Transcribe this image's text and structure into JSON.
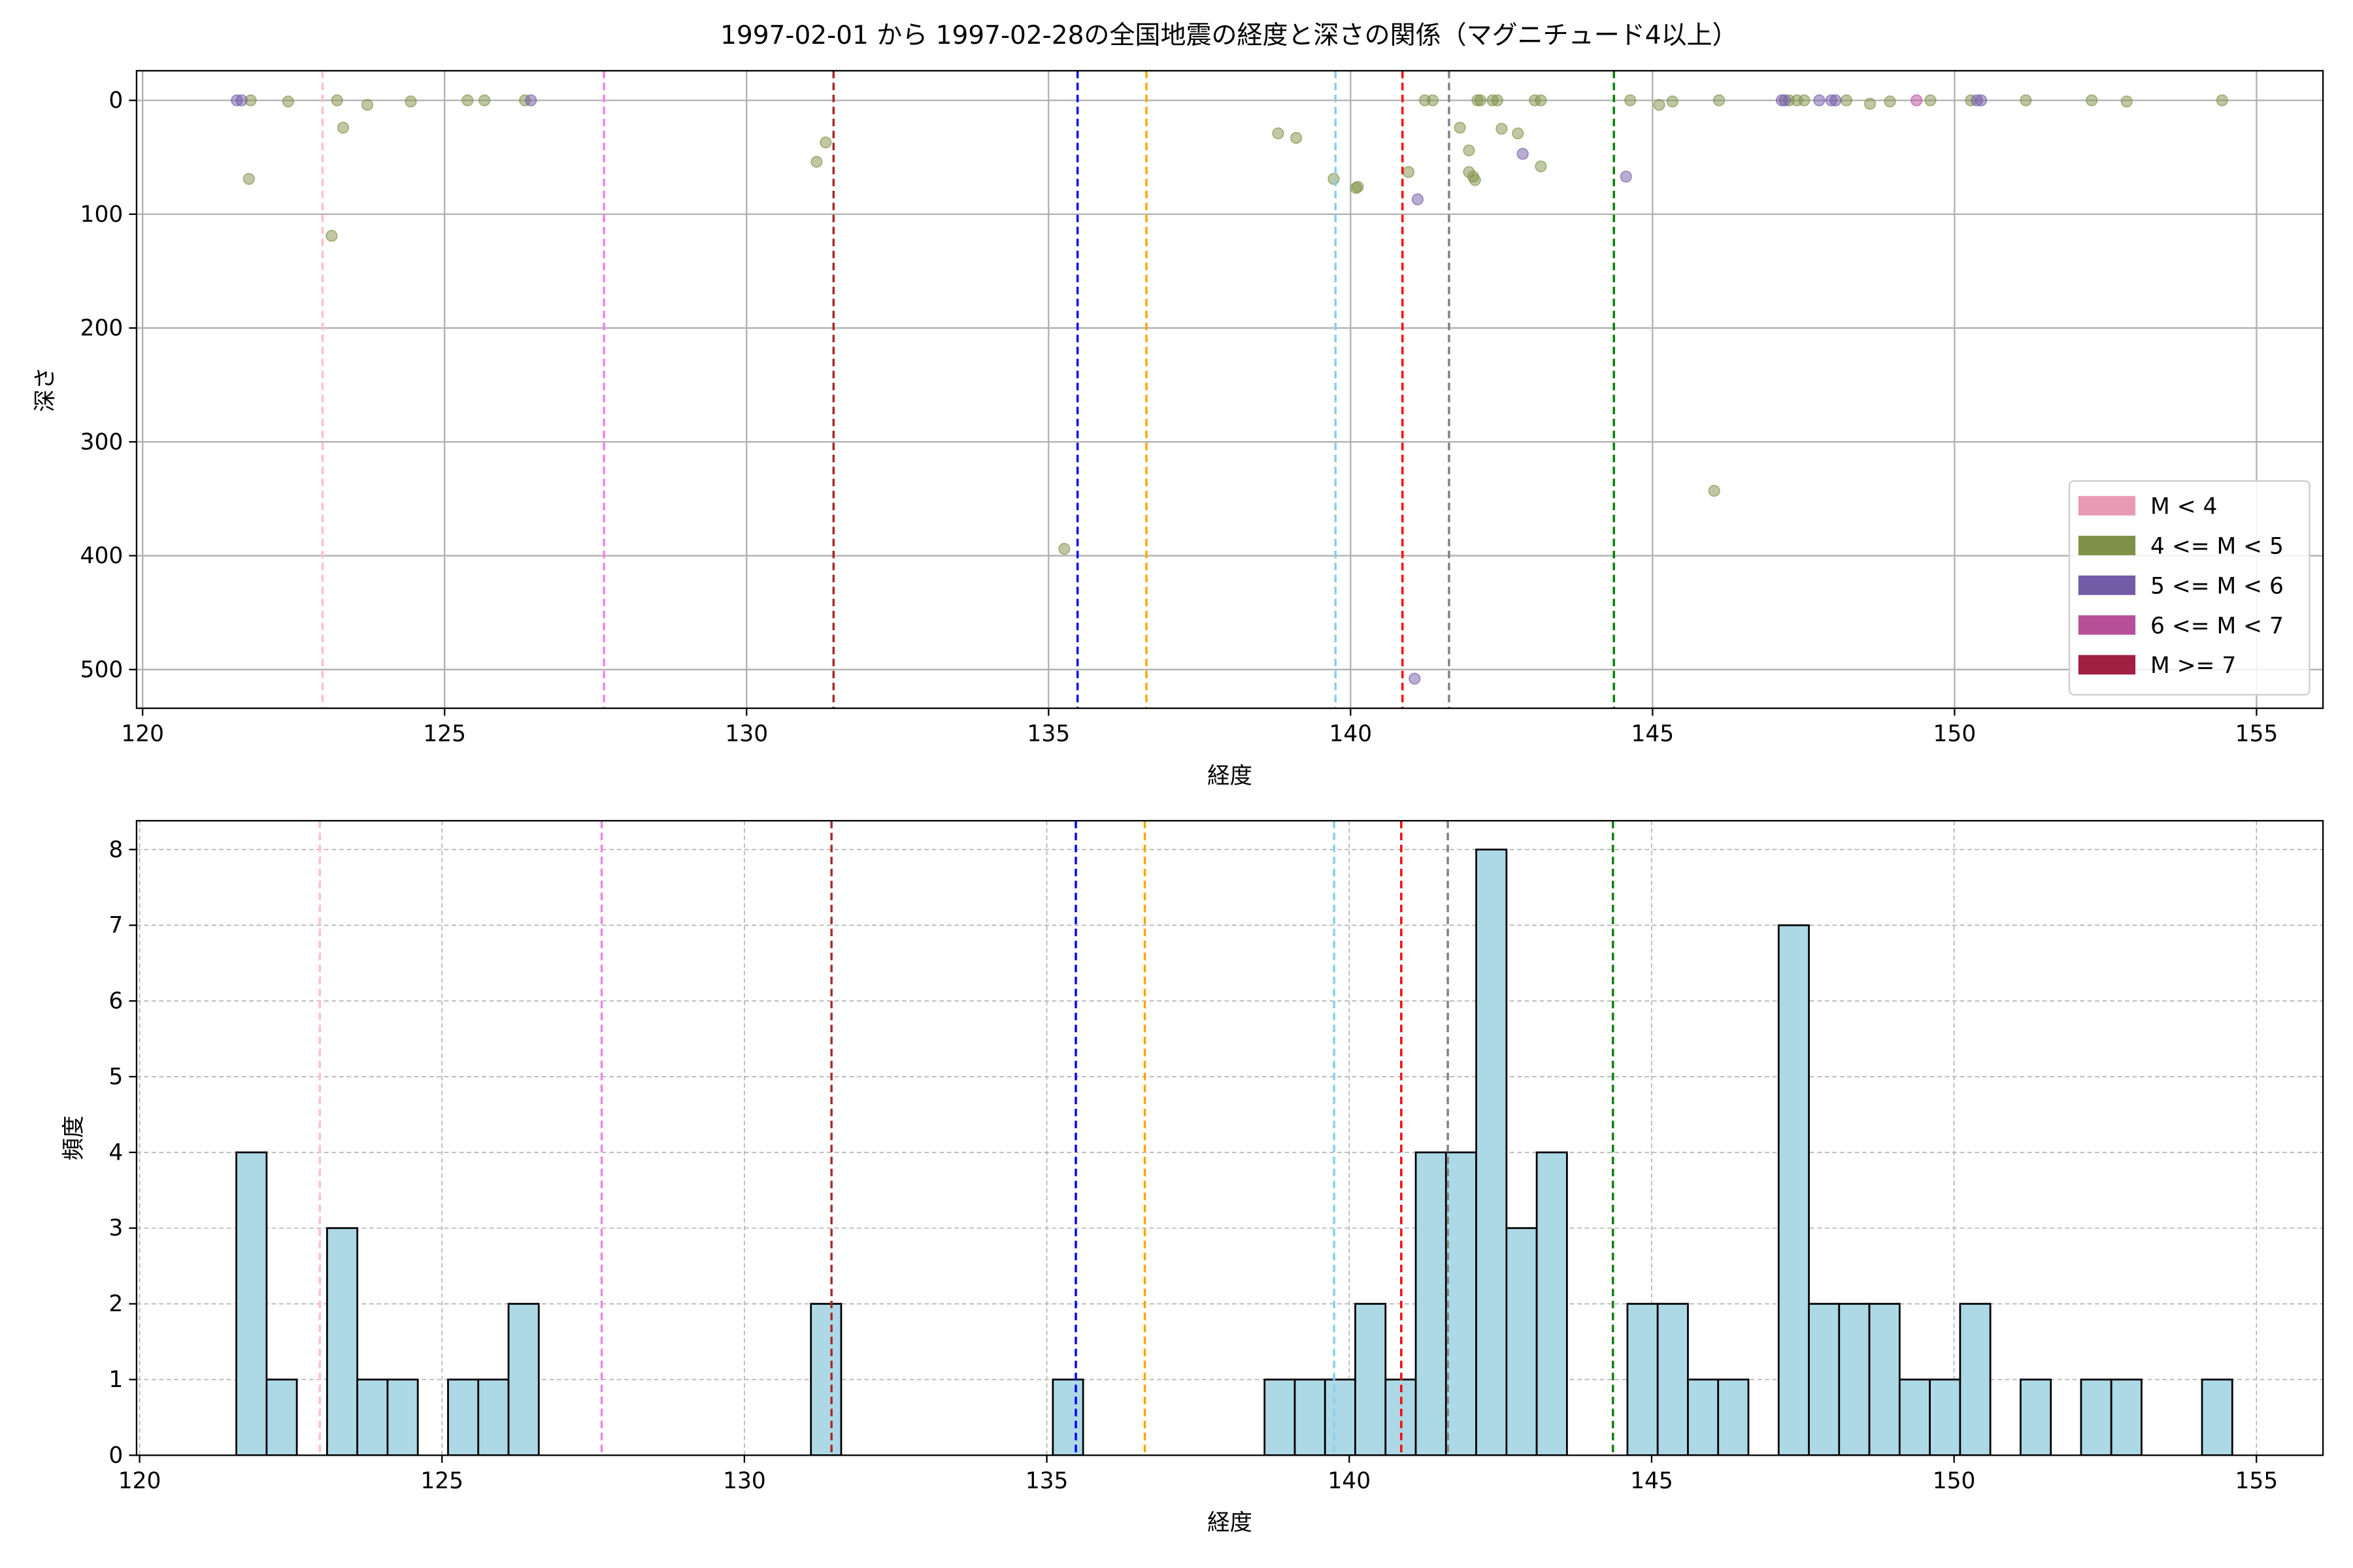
{
  "chart_data": [
    {
      "type": "scatter",
      "title": "1997-02-01 から 1997-02-28の全国地震の経度と深さの関係（マグニチュード4以上）",
      "xlabel": "経度",
      "ylabel": "深さ",
      "xlim": [
        119.9,
        156.1
      ],
      "ylim": [
        534,
        -26
      ],
      "xticks": [
        120,
        125,
        130,
        135,
        140,
        145,
        150,
        155
      ],
      "yticks": [
        0,
        100,
        200,
        300,
        400,
        500
      ],
      "grid": true,
      "legend": "lower right",
      "series": [
        {
          "name": "M < 4",
          "color": "#e89ab5",
          "x": [],
          "y": []
        },
        {
          "name": "4 <= M < 5",
          "color": "#7f9147",
          "x": [
            121.79,
            121.76,
            122.41,
            123.22,
            123.32,
            123.13,
            123.72,
            124.44,
            125.38,
            125.66,
            126.33,
            131.16,
            131.31,
            135.26,
            138.8,
            139.1,
            139.72,
            140.09,
            140.12,
            140.96,
            141.23,
            141.36,
            141.81,
            141.96,
            141.96,
            142.03,
            142.06,
            142.1,
            142.15,
            142.35,
            142.43,
            142.5,
            142.77,
            143.05,
            143.15,
            143.15,
            144.63,
            145.11,
            145.33,
            146.1,
            146.02,
            147.26,
            147.39,
            147.51,
            148.21,
            148.6,
            148.93,
            149.6,
            150.27,
            151.18,
            152.27,
            152.85,
            154.43
          ],
          "y": [
            0,
            69,
            1,
            0,
            24,
            119,
            4,
            1,
            0,
            0,
            0,
            54,
            37,
            394,
            29,
            33,
            69,
            77,
            76,
            63,
            0,
            0,
            24,
            44,
            63,
            67,
            70,
            0,
            0,
            0,
            0,
            25,
            29,
            0,
            0,
            58,
            0,
            4,
            1,
            0,
            343,
            0,
            0,
            0,
            0,
            3,
            1,
            0,
            0,
            0,
            0,
            1,
            0
          ]
        },
        {
          "name": "5 <= M < 6",
          "color": "#735ba7",
          "x": [
            121.56,
            121.64,
            126.43,
            141.11,
            141.06,
            142.85,
            144.56,
            147.14,
            147.19,
            147.76,
            147.96,
            148.03,
            150.37,
            150.44
          ],
          "y": [
            0,
            0,
            0,
            87,
            508,
            47,
            67,
            0,
            0,
            0,
            0,
            0,
            0,
            0
          ]
        },
        {
          "name": "6 <= M < 7",
          "color": "#b84f9b",
          "x": [
            149.37
          ],
          "y": [
            0
          ]
        },
        {
          "name": "M >= 7",
          "color": "#a11f3f",
          "x": [],
          "y": []
        }
      ],
      "vlines": [
        {
          "x": 122.98,
          "color": "pink"
        },
        {
          "x": 127.64,
          "color": "violet"
        },
        {
          "x": 131.44,
          "color": "brown"
        },
        {
          "x": 135.48,
          "color": "blue"
        },
        {
          "x": 136.62,
          "color": "orange"
        },
        {
          "x": 139.75,
          "color": "skyblue"
        },
        {
          "x": 140.86,
          "color": "red"
        },
        {
          "x": 141.63,
          "color": "gray"
        },
        {
          "x": 144.36,
          "color": "green"
        }
      ]
    },
    {
      "type": "histogram",
      "xlabel": "経度",
      "ylabel": "頻度",
      "xlim": [
        119.95,
        156.1
      ],
      "ylim": [
        0,
        8.38
      ],
      "xticks": [
        120,
        125,
        130,
        135,
        140,
        145,
        150,
        155
      ],
      "yticks": [
        0,
        1,
        2,
        3,
        4,
        5,
        6,
        7,
        8
      ],
      "grid": true,
      "color": "lightblue",
      "edgecolor": "black",
      "bins": [
        121.6,
        122.1,
        122.6,
        123.1,
        123.6,
        124.1,
        124.6,
        125.1,
        125.6,
        126.1,
        126.6,
        127.1,
        127.6,
        128.1,
        128.6,
        129.1,
        129.6,
        130.1,
        130.6,
        131.1,
        131.6,
        132.1,
        132.6,
        133.1,
        133.6,
        134.1,
        134.6,
        135.1,
        135.6,
        136.1,
        136.6,
        137.1,
        137.6,
        138.1,
        138.6,
        139.1,
        139.6,
        140.1,
        140.6,
        141.1,
        141.6,
        142.1,
        142.6,
        143.1,
        143.6,
        144.1,
        144.6,
        145.1,
        145.6,
        146.1,
        146.6,
        147.1,
        147.6,
        148.1,
        148.6,
        149.1,
        149.6,
        150.1,
        150.6,
        151.1,
        151.6,
        152.1,
        152.6,
        153.1,
        153.6,
        154.1,
        154.6
      ],
      "values": [
        4,
        1,
        0,
        3,
        1,
        1,
        0,
        1,
        1,
        2,
        0,
        0,
        0,
        0,
        0,
        0,
        0,
        0,
        0,
        2,
        0,
        0,
        0,
        0,
        0,
        0,
        0,
        1,
        0,
        0,
        0,
        0,
        0,
        0,
        1,
        1,
        1,
        2,
        1,
        4,
        4,
        8,
        3,
        4,
        0,
        0,
        2,
        2,
        1,
        1,
        0,
        7,
        2,
        2,
        2,
        1,
        1,
        2,
        0,
        1,
        0,
        1,
        1,
        0,
        0,
        1
      ],
      "vlines": [
        {
          "x": 122.98,
          "color": "pink"
        },
        {
          "x": 127.64,
          "color": "violet"
        },
        {
          "x": 131.44,
          "color": "brown"
        },
        {
          "x": 135.48,
          "color": "blue"
        },
        {
          "x": 136.62,
          "color": "orange"
        },
        {
          "x": 139.75,
          "color": "skyblue"
        },
        {
          "x": 140.86,
          "color": "red"
        },
        {
          "x": 141.63,
          "color": "gray"
        },
        {
          "x": 144.36,
          "color": "green"
        }
      ]
    }
  ]
}
